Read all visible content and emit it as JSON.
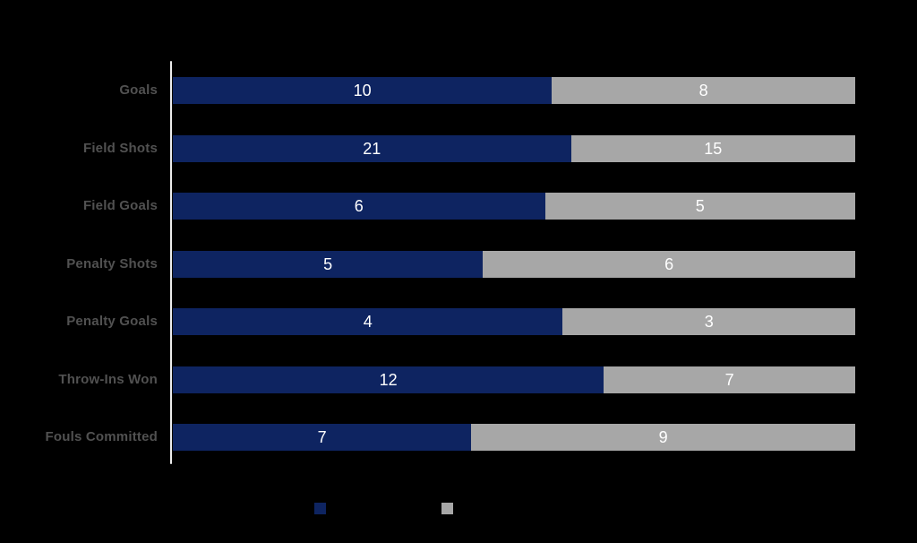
{
  "chart_data": {
    "type": "bar",
    "variant": "horizontal-stacked-100pct",
    "title": "",
    "categories": [
      "Goals",
      "Field Shots",
      "Field Goals",
      "Penalty Shots",
      "Penalty Goals",
      "Throw-Ins Won",
      "Fouls Committed"
    ],
    "series": [
      {
        "label": "",
        "color": "#0e2461",
        "values": [
          10,
          21,
          6,
          5,
          4,
          12,
          7
        ]
      },
      {
        "label": "",
        "color": "#a7a7a7",
        "values": [
          8,
          15,
          5,
          6,
          3,
          7,
          9
        ]
      }
    ],
    "value_labels": "inside-center",
    "legend_position": "bottom",
    "grid": "off",
    "axis": {
      "line_color": "#ececec"
    }
  },
  "colors": {
    "background": "#000000",
    "category_label": "#515151",
    "value_label": "#ffffff"
  }
}
